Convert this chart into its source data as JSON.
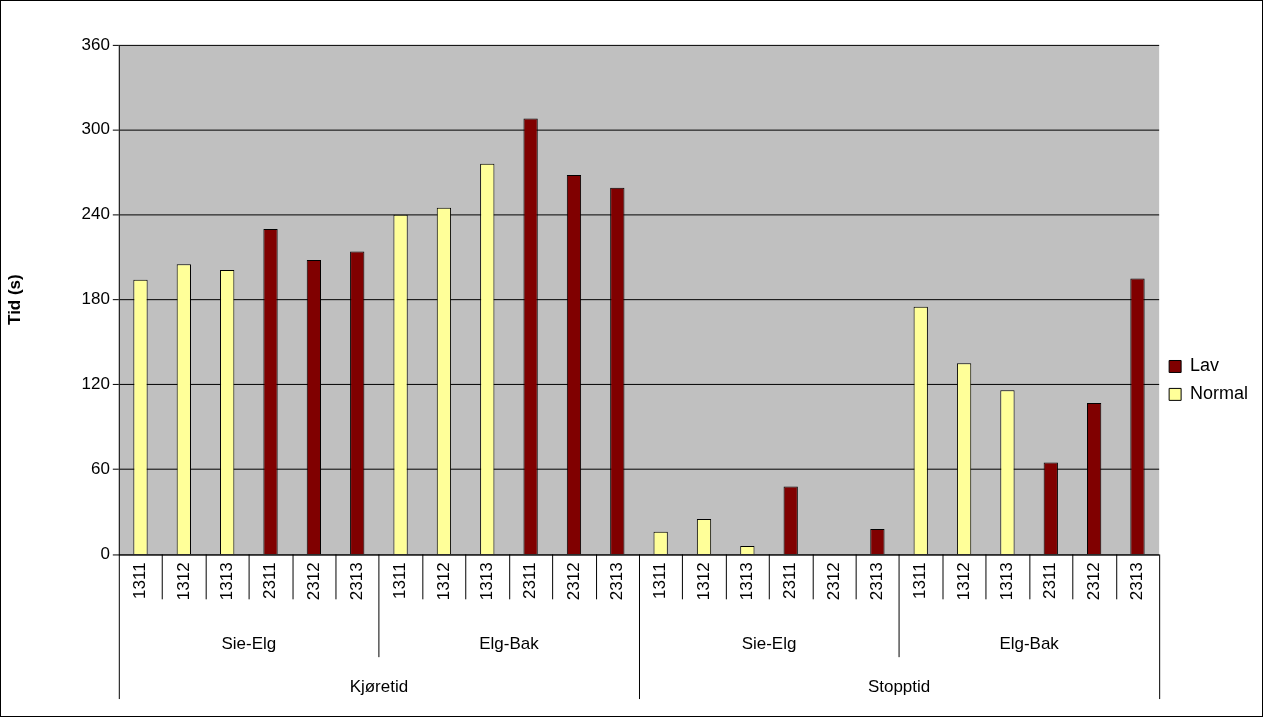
{
  "chart_data": {
    "type": "bar",
    "ylabel": "Tid (s)",
    "categories": [
      "1311",
      "1312",
      "1313",
      "2311",
      "2312",
      "2313",
      "1311",
      "1312",
      "1313",
      "2311",
      "2312",
      "2313",
      "1311",
      "1312",
      "1313",
      "2311",
      "2312",
      "2313",
      "1311",
      "1312",
      "1313",
      "2311",
      "2312",
      "2313"
    ],
    "series": [
      {
        "name": "Lav",
        "color": "#800000",
        "values": [
          null,
          null,
          null,
          230,
          208,
          214,
          null,
          null,
          null,
          308,
          268,
          259,
          null,
          null,
          null,
          48,
          null,
          18,
          null,
          null,
          null,
          65,
          107,
          195
        ]
      },
      {
        "name": "Normal",
        "color": "#ffff99",
        "values": [
          194,
          205,
          201,
          null,
          null,
          null,
          240,
          245,
          276,
          null,
          null,
          null,
          16,
          25,
          6,
          null,
          null,
          null,
          175,
          135,
          116,
          null,
          null,
          null
        ]
      }
    ],
    "annotations": [
      "Sie-Elg",
      "Elg-Bak",
      "Sie-Elg",
      "Elg-Bak",
      "Kjøretid",
      "Stopptid"
    ],
    "ylim": [
      0,
      360
    ],
    "yticks": [
      0,
      60,
      120,
      180,
      240,
      300,
      360
    ],
    "grid": "y",
    "legend": "right"
  }
}
